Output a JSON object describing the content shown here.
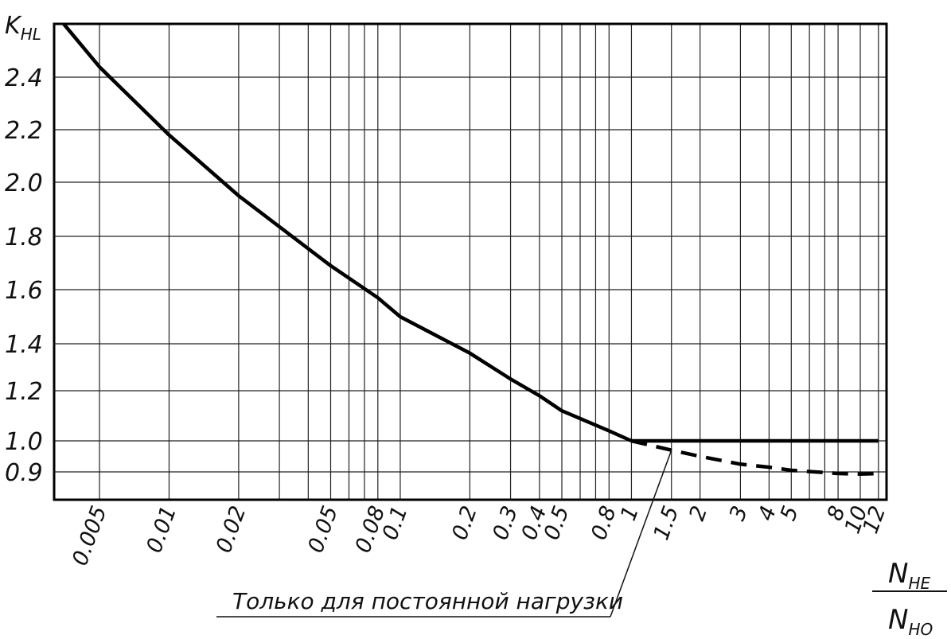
{
  "chart_data": {
    "type": "line",
    "ylabel": {
      "main": "K",
      "sub": "HL"
    },
    "xlabel": {
      "numerator": {
        "main": "N",
        "sub": "HE"
      },
      "denominator": {
        "main": "N",
        "sub": "HO"
      }
    },
    "y_ticks": [
      "2.4",
      "2.2",
      "2.0",
      "1.8",
      "1.6",
      "1.4",
      "1.2",
      "1.0",
      "0.9"
    ],
    "y_tick_values": [
      2.4,
      2.2,
      2.0,
      1.8,
      1.6,
      1.4,
      1.2,
      1.0,
      0.9
    ],
    "x_ticks": [
      "0.005",
      "0.01",
      "0.02",
      "0.05",
      "0.08",
      "0.1",
      "0.2",
      "0.3",
      "0.4",
      "0.5",
      "0.8",
      "1",
      "1.5",
      "2",
      "3",
      "4",
      "5",
      "8",
      "10",
      "12"
    ],
    "x_scale": "log",
    "grid": true,
    "series": [
      {
        "style": "solid",
        "x": [
          0.0035,
          0.005,
          0.01,
          0.02,
          0.05,
          0.08,
          0.1,
          0.2,
          0.3,
          0.4,
          0.5,
          0.8,
          1
        ],
        "y": [
          2.66,
          2.45,
          2.18,
          1.95,
          1.69,
          1.57,
          1.5,
          1.36,
          1.25,
          1.18,
          1.12,
          1.04,
          1.0
        ]
      },
      {
        "style": "solid",
        "x": [
          1,
          12
        ],
        "y": [
          1.0,
          1.0
        ]
      },
      {
        "style": "dashed",
        "x": [
          1,
          1.5,
          2,
          3,
          4,
          5,
          8,
          10,
          12
        ],
        "y": [
          1.0,
          0.97,
          0.95,
          0.925,
          0.915,
          0.905,
          0.895,
          0.893,
          0.895
        ]
      }
    ],
    "annotations": [
      {
        "text": "Только для постоянной нагрузки",
        "target_x": 1.5,
        "target_y": 0.97
      }
    ]
  }
}
